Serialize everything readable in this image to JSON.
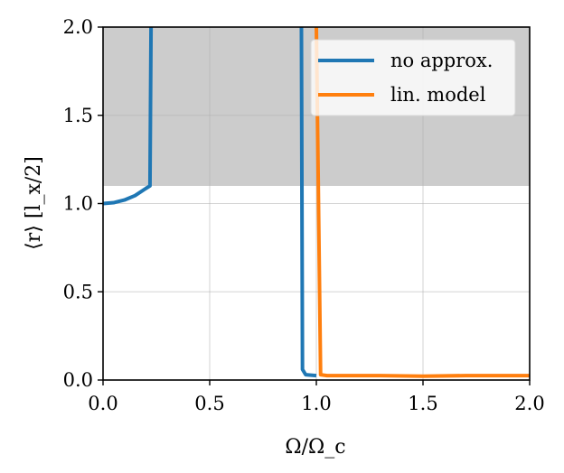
{
  "chart_data": {
    "type": "line",
    "xlabel": "Ω/Ω_c",
    "ylabel": "⟨r⟩ [l_x/2]",
    "xlim": [
      0,
      2
    ],
    "ylim": [
      0,
      2
    ],
    "x_ticks": [
      "0.0",
      "0.5",
      "1.0",
      "1.5",
      "2.0"
    ],
    "x_tick_values": [
      0,
      0.5,
      1.0,
      1.5,
      2.0
    ],
    "y_ticks": [
      "0.0",
      "0.5",
      "1.0",
      "1.5",
      "2.0"
    ],
    "y_tick_values": [
      0,
      0.5,
      1.0,
      1.5,
      2.0
    ],
    "grid": true,
    "shaded_region": {
      "y_from": 1.1,
      "y_to": 2.0,
      "color": "#cccccc"
    },
    "legend": {
      "placement": "top-right"
    },
    "series": [
      {
        "name": "no approx.",
        "color": "#1f77b4",
        "segments": [
          [
            [
              0,
              1.0
            ],
            [
              0.05,
              1.005
            ],
            [
              0.1,
              1.02
            ],
            [
              0.15,
              1.045
            ],
            [
              0.2,
              1.085
            ],
            [
              0.22,
              1.1
            ],
            [
              0.225,
              2.0
            ]
          ],
          [
            [
              0.93,
              2.0
            ],
            [
              0.935,
              0.06
            ],
            [
              0.95,
              0.03
            ],
            [
              1.0,
              0.025
            ]
          ]
        ]
      },
      {
        "name": "lin. model",
        "color": "#ff7f0e",
        "segments": [
          [
            [
              1.0,
              2.0
            ],
            [
              1.02,
              0.03
            ],
            [
              1.05,
              0.025
            ],
            [
              1.3,
              0.025
            ],
            [
              1.5,
              0.022
            ],
            [
              1.7,
              0.025
            ],
            [
              2.0,
              0.025
            ]
          ]
        ]
      }
    ]
  }
}
